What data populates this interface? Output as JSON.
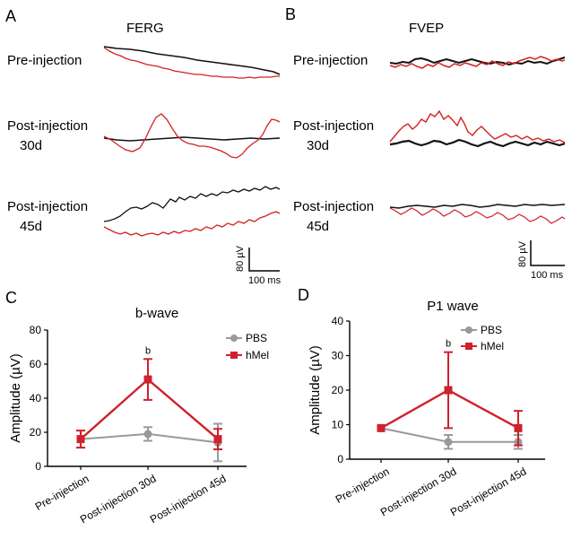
{
  "colors": {
    "pbs": "#999999",
    "hmel": "#d0212c",
    "black": "#111111",
    "red_trace": "#d42020"
  },
  "panels": {
    "A": {
      "letter": "A",
      "title": "FERG",
      "rows": [
        {
          "label_lines": [
            "Pre-injection"
          ]
        },
        {
          "label_lines": [
            "Post-injection",
            "30d"
          ]
        },
        {
          "label_lines": [
            "Post-injection",
            "45d"
          ]
        }
      ],
      "scale": {
        "vertical": "80 µV",
        "horizontal": "100 ms"
      }
    },
    "B": {
      "letter": "B",
      "title": "FVEP",
      "rows": [
        {
          "label_lines": [
            "Pre-injection"
          ]
        },
        {
          "label_lines": [
            "Post-injection",
            "30d"
          ]
        },
        {
          "label_lines": [
            "Post-injection",
            "45d"
          ]
        }
      ],
      "scale": {
        "vertical": "80 µV",
        "horizontal": "100 ms"
      }
    }
  },
  "chart_data": [
    {
      "panel": "C",
      "type": "line",
      "title": "b-wave",
      "ylabel": "Amplitude (µV)",
      "ylim": [
        0,
        80
      ],
      "yticks": [
        0,
        20,
        40,
        60,
        80
      ],
      "categories": [
        "Pre-injection",
        "Post-injection 30d",
        "Post-injection 45d"
      ],
      "series": [
        {
          "name": "PBS",
          "values": [
            16,
            19,
            14
          ],
          "errors": [
            5,
            4,
            11
          ],
          "marker": "circle"
        },
        {
          "name": "hMel",
          "values": [
            16,
            51,
            16
          ],
          "errors": [
            5,
            12,
            6
          ],
          "marker": "square"
        }
      ],
      "annotations": [
        {
          "text": "b",
          "category_index": 1,
          "value": 63
        }
      ],
      "legend": "top-right"
    },
    {
      "panel": "D",
      "type": "line",
      "title": "P1 wave",
      "ylabel": "Amplitude (µV)",
      "ylim": [
        0,
        40
      ],
      "yticks": [
        0,
        10,
        20,
        30,
        40
      ],
      "categories": [
        "Pre-injection",
        "Post-injection 30d",
        "Post-injection 45d"
      ],
      "series": [
        {
          "name": "PBS",
          "values": [
            9,
            5,
            5
          ],
          "errors": [
            0,
            2,
            2
          ],
          "marker": "circle"
        },
        {
          "name": "hMel",
          "values": [
            9,
            20,
            9
          ],
          "errors": [
            0,
            11,
            5
          ],
          "marker": "square"
        }
      ],
      "annotations": [
        {
          "text": "b",
          "category_index": 1,
          "value": 31
        }
      ],
      "legend": "top-right"
    }
  ]
}
